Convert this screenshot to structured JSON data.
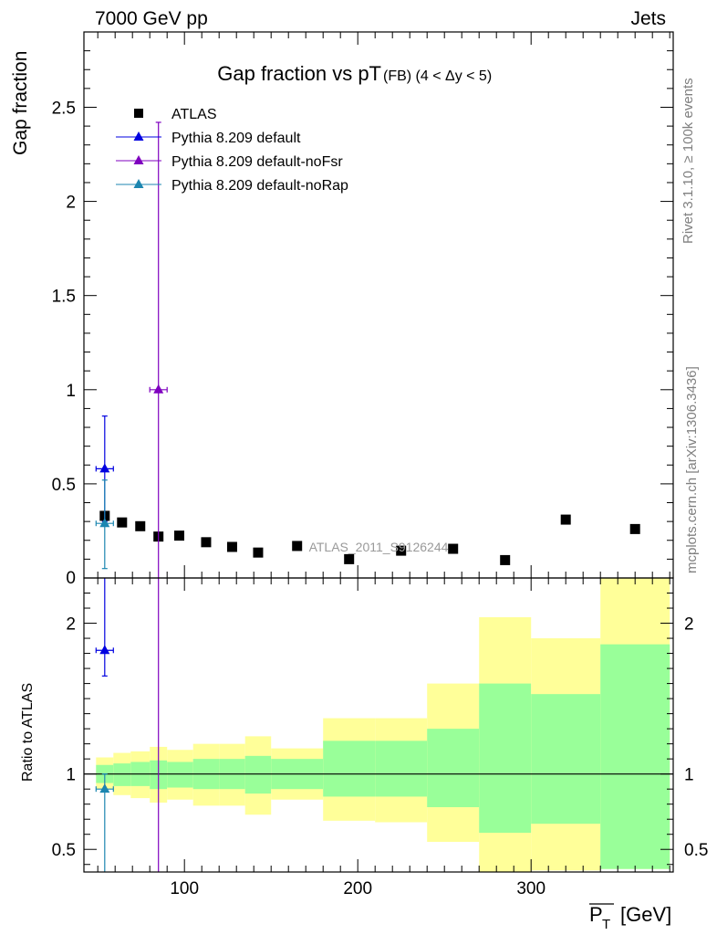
{
  "header": {
    "left": "7000 GeV pp",
    "right": "Jets"
  },
  "side_text": {
    "rivet": "Rivet 3.1.10, ≥ 100k events",
    "mcplots": "mcplots.cern.ch [arXiv:1306.3436]"
  },
  "chart_data": [
    {
      "type": "scatter",
      "title": "Gap fraction vs pT",
      "title_suffix": "(FB) (4 < Δy < 5)",
      "ylabel": "Gap fraction",
      "xlim": [
        42,
        382
      ],
      "ylim": [
        0,
        2.9
      ],
      "yticks": [
        0.5,
        1,
        1.5,
        2,
        2.5
      ],
      "ytick_labels": [
        "0.5",
        "1",
        "1.5",
        "2",
        "2.5"
      ],
      "extra_label_0": "0",
      "watermark": "ATLAS_2011_S9126244",
      "legend_position": "top-left",
      "series": [
        {
          "name": "ATLAS",
          "color": "#000000",
          "marker": "square",
          "points": [
            {
              "x": 54,
              "y": 0.33
            },
            {
              "x": 64,
              "y": 0.295
            },
            {
              "x": 74.5,
              "y": 0.275
            },
            {
              "x": 85,
              "y": 0.22
            },
            {
              "x": 97,
              "y": 0.225
            },
            {
              "x": 112.5,
              "y": 0.19
            },
            {
              "x": 127.5,
              "y": 0.165
            },
            {
              "x": 142.5,
              "y": 0.135
            },
            {
              "x": 165,
              "y": 0.17
            },
            {
              "x": 195,
              "y": 0.1
            },
            {
              "x": 225,
              "y": 0.145
            },
            {
              "x": 255,
              "y": 0.155
            },
            {
              "x": 285,
              "y": 0.095
            },
            {
              "x": 320,
              "y": 0.31
            },
            {
              "x": 360,
              "y": 0.26
            }
          ]
        },
        {
          "name": "Pythia 8.209 default",
          "color": "#0000e0",
          "marker": "triangle",
          "points": [
            {
              "x": 54,
              "y": 0.58,
              "xlo": 49,
              "xhi": 59,
              "ylo": 0.3,
              "yhi": 0.86
            }
          ]
        },
        {
          "name": "Pythia 8.209 default-noFsr",
          "color": "#7f00bf",
          "marker": "triangle",
          "points": [
            {
              "x": 85,
              "y": 1.0,
              "xlo": 80,
              "xhi": 90,
              "ylo": 0,
              "yhi": 2.42
            }
          ]
        },
        {
          "name": "Pythia 8.209 default-noRap",
          "color": "#1c86b0",
          "marker": "triangle",
          "points": [
            {
              "x": 54,
              "y": 0.29,
              "xlo": 49,
              "xhi": 59,
              "ylo": 0.05,
              "yhi": 0.52
            }
          ]
        }
      ]
    },
    {
      "type": "area",
      "ylabel": "Ratio to ATLAS",
      "xlabel": "P̅T [GeV]",
      "xlabel_main": "P",
      "xlabel_sub": "T",
      "xlabel_unit": "[GeV]",
      "xlim": [
        42,
        382
      ],
      "ylim": [
        0.35,
        2.3
      ],
      "yticks": [
        0.5,
        1,
        2
      ],
      "ytick_labels": [
        "0.5",
        "1",
        "2"
      ],
      "xticks": [
        100,
        200,
        300
      ],
      "xtick_labels": [
        "100",
        "200",
        "300"
      ],
      "reference_line": 1,
      "bands": {
        "edges": [
          49,
          59,
          69,
          80,
          90,
          105,
          120,
          135,
          150,
          180,
          210,
          240,
          270,
          300,
          340,
          380
        ],
        "total_lo": [
          0.9,
          0.86,
          0.84,
          0.81,
          0.83,
          0.79,
          0.79,
          0.73,
          0.83,
          0.69,
          0.68,
          0.55,
          0.31,
          0.36,
          0.37
        ],
        "total_hi": [
          1.11,
          1.14,
          1.15,
          1.18,
          1.16,
          1.2,
          1.2,
          1.25,
          1.17,
          1.37,
          1.37,
          1.6,
          2.04,
          1.9,
          2.32
        ],
        "stat_lo": [
          0.94,
          0.92,
          0.92,
          0.9,
          0.91,
          0.9,
          0.9,
          0.87,
          0.9,
          0.85,
          0.85,
          0.78,
          0.61,
          0.67,
          0.37
        ],
        "stat_hi": [
          1.06,
          1.07,
          1.08,
          1.09,
          1.08,
          1.1,
          1.1,
          1.12,
          1.1,
          1.22,
          1.22,
          1.3,
          1.6,
          1.53,
          1.86
        ],
        "total_color": "#ffff99",
        "stat_color": "#99ff99"
      },
      "series": [
        {
          "name": "Pythia 8.209 default",
          "color": "#0000e0",
          "points": [
            {
              "x": 54,
              "y": 1.82,
              "xlo": 49,
              "xhi": 59,
              "ylo": 1.65,
              "yhi": 2.3
            }
          ]
        },
        {
          "name": "Pythia 8.209 default-noFsr",
          "color": "#7f00bf",
          "points": []
        },
        {
          "name": "Pythia 8.209 default-noRap",
          "color": "#1c86b0",
          "points": [
            {
              "x": 54,
              "y": 0.9,
              "xlo": 49,
              "xhi": 59,
              "ylo": 0.35,
              "yhi": 1.0
            }
          ]
        }
      ]
    }
  ]
}
